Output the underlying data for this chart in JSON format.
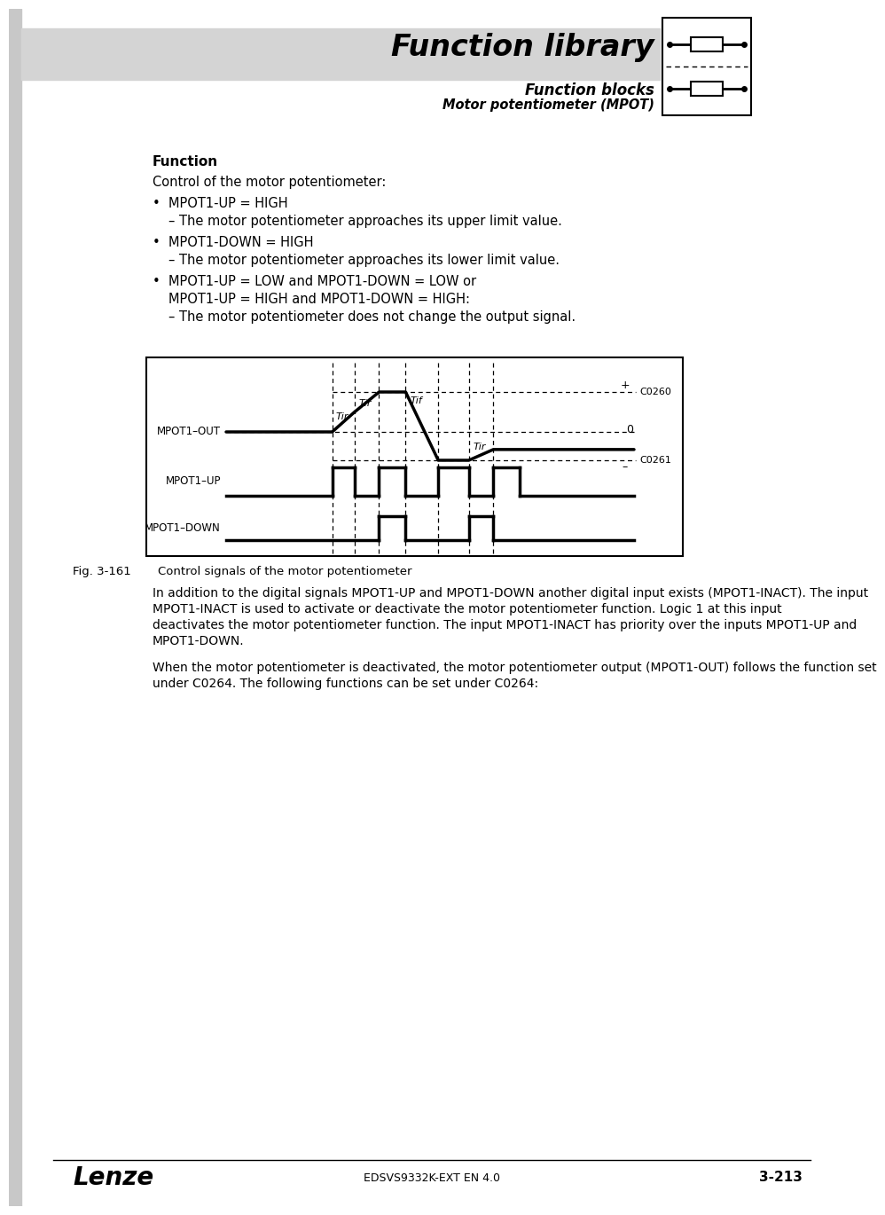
{
  "page_bg": "#ffffff",
  "header_bg": "#d4d4d4",
  "header_title": "Function library",
  "header_sub1": "Function blocks",
  "header_sub2": "Motor potentiometer (MPOT)",
  "section_title": "Function",
  "fig_caption": "Fig. 3-161",
  "fig_caption_text": "Control signals of the motor potentiometer",
  "para1": "In addition to the digital signals MPOT1-UP and MPOT1-DOWN another digital input exists (MPOT1-INACT). The input MPOT1-INACT is used to activate or deactivate the motor potentiometer function. Logic 1 at this input deactivates the motor potentiometer function. The input MPOT1-INACT has priority over the inputs MPOT1-UP and MPOT1-DOWN.",
  "para2": "When the motor potentiometer is deactivated, the motor potentiometer output (MPOT1-OUT) follows the function set under C0264. The following functions can be set under C0264:",
  "footer_left": "Lenze",
  "footer_center": "EDSVS9332K-EXT EN 4.0",
  "footer_right": "3-213"
}
